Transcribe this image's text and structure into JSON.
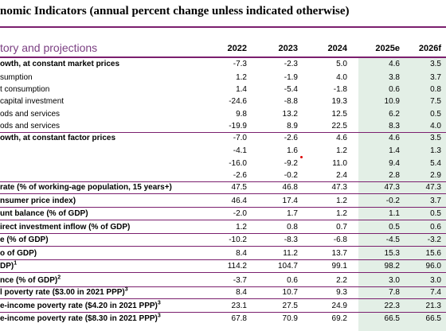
{
  "title": "nomic Indicators (annual percent change unless indicated otherwise)",
  "header_label": "tory and projections",
  "years": [
    "2022",
    "2023",
    "2024",
    "2025e",
    "2026f"
  ],
  "rows": [
    {
      "label": "owth, at constant market prices",
      "bold": true,
      "values": [
        "-7.3",
        "-2.3",
        "5.0",
        "4.6",
        "3.5"
      ]
    },
    {
      "label": "sumption",
      "bold": false,
      "values": [
        "1.2",
        "-1.9",
        "4.0",
        "3.8",
        "3.7"
      ]
    },
    {
      "label": "t consumption",
      "bold": false,
      "values": [
        "1.4",
        "-5.4",
        "-1.8",
        "0.6",
        "0.8"
      ]
    },
    {
      "label": "capital investment",
      "bold": false,
      "values": [
        "-24.6",
        "-8.8",
        "19.3",
        "10.9",
        "7.5"
      ]
    },
    {
      "label": "ods and services",
      "bold": false,
      "values": [
        "9.8",
        "13.2",
        "12.5",
        "6.2",
        "0.5"
      ]
    },
    {
      "label": "ods and services",
      "bold": false,
      "values": [
        "-19.9",
        "8.9",
        "22.5",
        "8.3",
        "4.0"
      ]
    },
    {
      "label": "owth, at constant factor prices",
      "bold": true,
      "values": [
        "-7.0",
        "-2.6",
        "4.6",
        "4.6",
        "3.5"
      ]
    },
    {
      "label": "",
      "bold": false,
      "values": [
        "-4.1",
        "1.6",
        "1.2",
        "1.4",
        "1.3"
      ]
    },
    {
      "label": "",
      "bold": false,
      "values": [
        "-16.0",
        "-9.2",
        "11.0",
        "9.4",
        "5.4"
      ]
    },
    {
      "label": "",
      "bold": false,
      "values": [
        "-2.6",
        "-0.2",
        "2.4",
        "2.8",
        "2.9"
      ]
    },
    {
      "label": "rate (% of working-age population, 15 years+)",
      "bold": true,
      "values": [
        "47.5",
        "46.8",
        "47.3",
        "47.3",
        "47.3"
      ]
    },
    {
      "label": "nsumer price index)",
      "bold": true,
      "values": [
        "46.4",
        "17.4",
        "1.2",
        "-0.2",
        "3.7"
      ]
    },
    {
      "label": "unt balance (% of GDP)",
      "bold": true,
      "values": [
        "-2.0",
        "1.7",
        "1.2",
        "1.1",
        "0.5"
      ]
    },
    {
      "label": "irect investment inflow (% of GDP)",
      "bold": true,
      "values": [
        "1.2",
        "0.8",
        "0.7",
        "0.5",
        "0.6"
      ]
    },
    {
      "label": "e (% of GDP)",
      "bold": true,
      "values": [
        "-10.2",
        "-8.3",
        "-6.8",
        "-4.5",
        "-3.2"
      ]
    },
    {
      "label": "o of GDP)",
      "bold": true,
      "values": [
        "8.4",
        "11.2",
        "13.7",
        "15.3",
        "15.6"
      ]
    },
    {
      "label": "DP)",
      "sup": "1",
      "bold": true,
      "values": [
        "114.2",
        "104.7",
        "99.1",
        "98.2",
        "96.0"
      ]
    },
    {
      "label": "nce (% of GDP)",
      "sup": "2",
      "bold": true,
      "values": [
        "-3.7",
        "0.6",
        "2.2",
        "3.0",
        "3.0"
      ]
    },
    {
      "label": "l poverty rate ($3.00 in 2021 PPP)",
      "sup": "3",
      "bold": true,
      "values": [
        "8.4",
        "10.7",
        "9.3",
        "7.8",
        "7.4"
      ]
    },
    {
      "label": "e-income poverty rate ($4.20 in 2021 PPP)",
      "sup": "3",
      "bold": true,
      "values": [
        "23.1",
        "27.5",
        "24.9",
        "22.3",
        "21.3"
      ]
    },
    {
      "label": "e-income poverty rate ($8.30 in 2021 PPP)",
      "sup": "3",
      "bold": true,
      "values": [
        "67.8",
        "70.9",
        "69.2",
        "66.5",
        "66.5"
      ]
    }
  ]
}
